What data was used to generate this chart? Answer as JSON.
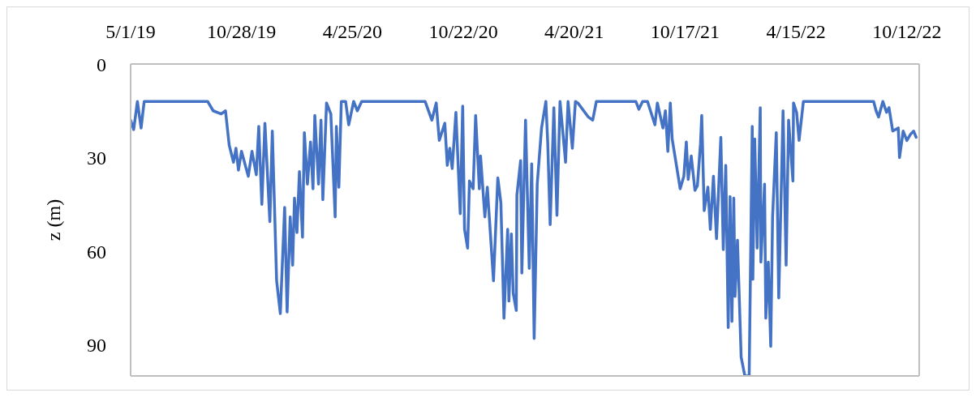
{
  "chart_data": {
    "type": "line",
    "ylabel": "z (m)",
    "xlim": [
      "2019-05-01",
      "2022-11-01"
    ],
    "xticks": [
      {
        "value": "2019-05-01",
        "label": "5/1/19"
      },
      {
        "value": "2019-10-28",
        "label": "10/28/19"
      },
      {
        "value": "2020-04-25",
        "label": "4/25/20"
      },
      {
        "value": "2020-10-22",
        "label": "10/22/20"
      },
      {
        "value": "2021-04-20",
        "label": "4/20/21"
      },
      {
        "value": "2021-10-17",
        "label": "10/17/21"
      },
      {
        "value": "2022-04-15",
        "label": "4/15/22"
      },
      {
        "value": "2022-10-12",
        "label": "10/12/22"
      }
    ],
    "ylim": [
      100,
      0
    ],
    "yticks": [
      0,
      30,
      60,
      90
    ],
    "grid": false,
    "legend": false,
    "marker": "none",
    "line_style": "solid",
    "x": [
      "2019-05-01",
      "2019-05-06",
      "2019-05-12",
      "2019-05-18",
      "2019-05-23",
      "2019-09-03",
      "2019-09-12",
      "2019-09-25",
      "2019-10-02",
      "2019-10-08",
      "2019-10-15",
      "2019-10-19",
      "2019-10-23",
      "2019-10-28",
      "2019-11-08",
      "2019-11-14",
      "2019-11-21",
      "2019-11-25",
      "2019-11-30",
      "2019-12-05",
      "2019-12-13",
      "2019-12-17",
      "2019-12-24",
      "2019-12-30",
      "2020-01-06",
      "2020-01-10",
      "2020-01-15",
      "2020-01-19",
      "2020-01-22",
      "2020-01-26",
      "2020-01-30",
      "2020-02-04",
      "2020-02-07",
      "2020-02-12",
      "2020-02-17",
      "2020-02-21",
      "2020-02-24",
      "2020-03-01",
      "2020-03-05",
      "2020-03-08",
      "2020-03-14",
      "2020-03-21",
      "2020-03-28",
      "2020-03-30",
      "2020-04-03",
      "2020-04-07",
      "2020-04-14",
      "2020-04-19",
      "2020-04-27",
      "2020-05-03",
      "2020-05-10",
      "2020-08-21",
      "2020-09-01",
      "2020-09-08",
      "2020-09-13",
      "2020-09-22",
      "2020-09-26",
      "2020-09-30",
      "2020-10-04",
      "2020-10-10",
      "2020-10-17",
      "2020-10-21",
      "2020-10-24",
      "2020-10-29",
      "2020-11-01",
      "2020-11-07",
      "2020-11-11",
      "2020-11-17",
      "2020-11-19",
      "2020-11-26",
      "2020-11-30",
      "2020-12-10",
      "2020-12-17",
      "2020-12-22",
      "2020-12-27",
      "2021-01-02",
      "2021-01-04",
      "2021-01-08",
      "2021-01-11",
      "2021-01-16",
      "2021-01-17",
      "2021-01-23",
      "2021-01-25",
      "2021-01-31",
      "2021-02-06",
      "2021-02-10",
      "2021-02-14",
      "2021-02-19",
      "2021-02-26",
      "2021-03-05",
      "2021-03-08",
      "2021-03-12",
      "2021-03-18",
      "2021-03-23",
      "2021-03-28",
      "2021-04-06",
      "2021-04-10",
      "2021-04-17",
      "2021-04-22",
      "2021-04-26",
      "2021-05-13",
      "2021-05-20",
      "2021-05-26",
      "2021-07-29",
      "2021-08-03",
      "2021-08-09",
      "2021-08-17",
      "2021-08-29",
      "2021-09-02",
      "2021-09-11",
      "2021-09-15",
      "2021-09-19",
      "2021-09-23",
      "2021-09-26",
      "2021-10-05",
      "2021-10-09",
      "2021-10-15",
      "2021-10-19",
      "2021-10-22",
      "2021-10-27",
      "2021-11-02",
      "2021-11-06",
      "2021-11-11",
      "2021-11-13",
      "2021-11-17",
      "2021-11-23",
      "2021-11-27",
      "2021-12-02",
      "2021-12-07",
      "2021-12-11",
      "2021-12-14",
      "2021-12-18",
      "2021-12-22",
      "2021-12-26",
      "2021-12-29",
      "2022-01-01",
      "2022-01-04",
      "2022-01-06",
      "2022-01-10",
      "2022-01-16",
      "2022-01-22",
      "2022-01-29",
      "2022-02-03",
      "2022-02-04",
      "2022-02-07",
      "2022-02-11",
      "2022-02-16",
      "2022-02-17",
      "2022-02-23",
      "2022-02-25",
      "2022-03-01",
      "2022-03-05",
      "2022-03-08",
      "2022-03-14",
      "2022-03-18",
      "2022-03-25",
      "2022-03-30",
      "2022-04-03",
      "2022-04-10",
      "2022-04-11",
      "2022-04-16",
      "2022-04-20",
      "2022-04-27",
      "2022-08-19",
      "2022-08-23",
      "2022-08-27",
      "2022-09-03",
      "2022-09-09",
      "2022-09-13",
      "2022-09-19",
      "2022-09-28",
      "2022-09-30",
      "2022-10-06",
      "2022-10-12",
      "2022-10-18",
      "2022-10-23",
      "2022-10-27"
    ],
    "series": [
      {
        "color": "#4472c4",
        "values": [
          18,
          21,
          12,
          20.5,
          12,
          12,
          15,
          16,
          15,
          26,
          31.5,
          27,
          34,
          28,
          36,
          28,
          35.5,
          20,
          45,
          19,
          50.5,
          21.5,
          69.5,
          80,
          46,
          79.5,
          49,
          64.5,
          43,
          54,
          34.5,
          55.5,
          22,
          38.5,
          25,
          40,
          16.5,
          38.5,
          18,
          43.5,
          12.5,
          16,
          49,
          20,
          39.5,
          12,
          12,
          19.5,
          12,
          15,
          12,
          12,
          18,
          12.5,
          24.5,
          19,
          32.5,
          27,
          33.5,
          15.5,
          48,
          13.5,
          53,
          59,
          37.5,
          40,
          16.5,
          40,
          29.5,
          49,
          39.5,
          69.5,
          36.5,
          44.5,
          81.5,
          53,
          76,
          54.5,
          73.5,
          79,
          42,
          31,
          67,
          18,
          65.5,
          32,
          88,
          38.5,
          20.5,
          12,
          25,
          51.5,
          14,
          48.5,
          12,
          31.5,
          12,
          27,
          12,
          12.5,
          17,
          18,
          12,
          12,
          14.5,
          12,
          12,
          19.5,
          12.5,
          20.5,
          15,
          28,
          12.5,
          24,
          35,
          40,
          36,
          25,
          37,
          29.5,
          40.5,
          39,
          25.5,
          16.5,
          47,
          39.5,
          53,
          36,
          56,
          37.5,
          23.5,
          59.5,
          32.5,
          84.5,
          42.5,
          82.5,
          43,
          74.5,
          56.5,
          94,
          100,
          100,
          20,
          69,
          24,
          59,
          14,
          63.5,
          38.5,
          81.5,
          63.5,
          90.5,
          49,
          22,
          75,
          15,
          64.5,
          18,
          37.5,
          12.5,
          15.5,
          24.5,
          12,
          12,
          15,
          17,
          12,
          15.5,
          14,
          21.5,
          20.5,
          30,
          21.5,
          24.5,
          22.5,
          21.5,
          23.5
        ]
      }
    ]
  }
}
